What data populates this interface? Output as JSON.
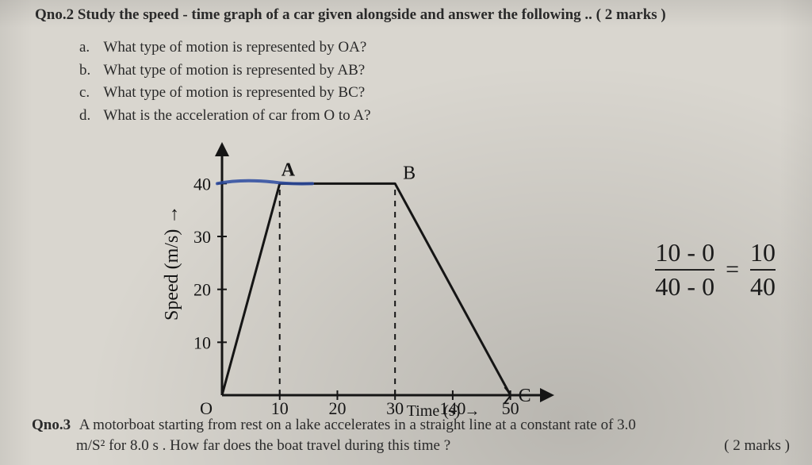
{
  "colors": {
    "paper": "#d9d6cf",
    "ink": "#2a2a2a",
    "black": "#151515",
    "blue_pen": "#2b4aa0"
  },
  "q2": {
    "label": "Qno.2",
    "text": "Study the speed - time graph of a car given alongside and answer the following .. ( 2 marks )",
    "options": [
      {
        "letter": "a.",
        "text": "What type of motion is represented by OA?"
      },
      {
        "letter": "b.",
        "text": "What type of motion is represented by AB?"
      },
      {
        "letter": "c.",
        "text": "What type of motion is represented by BC?"
      },
      {
        "letter": "d.",
        "text": "What is the acceleration of car from O to A?"
      }
    ]
  },
  "graph": {
    "type": "line",
    "x_axis": {
      "label": "Time (s) →",
      "ticks": [
        0,
        10,
        20,
        30,
        40,
        50
      ],
      "lim": [
        0,
        55
      ]
    },
    "y_axis": {
      "label": "Speed (m/s) →",
      "ticks": [
        10,
        20,
        30,
        40
      ],
      "lim": [
        0,
        45
      ]
    },
    "origin_label": "O",
    "points": {
      "O": {
        "x": 0,
        "y": 0,
        "label": "O"
      },
      "A": {
        "x": 10,
        "y": 40,
        "label": "A"
      },
      "B": {
        "x": 30,
        "y": 40,
        "label": "B"
      },
      "C": {
        "x": 50,
        "y": 0,
        "label": "C"
      }
    },
    "axis_color": "#151515",
    "line_color": "#151515",
    "line_width": 3,
    "dash_color": "#151515",
    "blue_scribble_color": "#2b4aa0",
    "tick_fontsize": 22,
    "label_fontsize": 24,
    "point_label_fontsize": 24,
    "x_extra_tick_40_note": "140 (smudged)"
  },
  "handwriting": {
    "frac_num": "10 - 0",
    "frac_den": "40 - 0",
    "equals": "=",
    "frac2_num": "10",
    "frac2_den": "40"
  },
  "q3": {
    "label": "Qno.3",
    "line1": "A motorboat starting from rest on a lake accelerates in a straight line at a constant rate of 3.0",
    "line2": "m/S² for 8.0 s . How far does the boat travel during this time ?",
    "marks": "( 2 marks )"
  }
}
